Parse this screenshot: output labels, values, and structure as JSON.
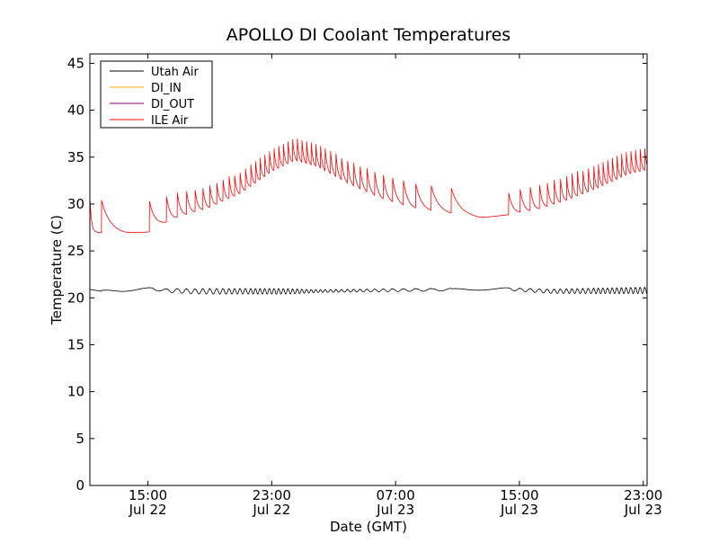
{
  "chart_data": {
    "type": "line",
    "title": "APOLLO DI Coolant Temperatures",
    "xlabel": "Date (GMT)",
    "ylabel": "Temperature (C)",
    "xlim_hours": [
      11.25,
      47.25
    ],
    "ylim": [
      0,
      46
    ],
    "yticks": [
      0,
      5,
      10,
      15,
      20,
      25,
      30,
      35,
      40,
      45
    ],
    "xticks": [
      {
        "hour": 15,
        "time": "15:00",
        "date": "Jul 22"
      },
      {
        "hour": 23,
        "time": "23:00",
        "date": "Jul 22"
      },
      {
        "hour": 31,
        "time": "07:00",
        "date": "Jul 23"
      },
      {
        "hour": 39,
        "time": "15:00",
        "date": "Jul 23"
      },
      {
        "hour": 47,
        "time": "23:00",
        "date": "Jul 23"
      }
    ],
    "grid": false,
    "legend_location": "top-left",
    "series": [
      {
        "name": "Utah Air",
        "color": "#000000",
        "base": [
          [
            11.25,
            20.9
          ],
          [
            12,
            20.7
          ],
          [
            14,
            20.85
          ],
          [
            15.2,
            21.0
          ],
          [
            16,
            20.8
          ],
          [
            18,
            20.7
          ],
          [
            25,
            20.7
          ],
          [
            30,
            20.8
          ],
          [
            38,
            20.95
          ],
          [
            41,
            20.7
          ],
          [
            47.25,
            20.8
          ]
        ],
        "oscillation_amplitude": [
          [
            11.25,
            0.15
          ],
          [
            15,
            0.1
          ],
          [
            17,
            0.25
          ],
          [
            19,
            0.3
          ],
          [
            24,
            0.3
          ],
          [
            26,
            0.15
          ],
          [
            33,
            0.15
          ],
          [
            37,
            0.1
          ],
          [
            40,
            0.2
          ],
          [
            44,
            0.3
          ],
          [
            47.25,
            0.35
          ]
        ],
        "cycle_onsets_hours": [
          12.0,
          15.1,
          16.2,
          16.9,
          17.5,
          18.05,
          18.55,
          19.0,
          19.45,
          19.85,
          20.25,
          20.6,
          20.95,
          21.3,
          21.65,
          21.95,
          22.25,
          22.55,
          22.85,
          23.15,
          23.45,
          23.75,
          24.05,
          24.35,
          24.65,
          24.95,
          25.25,
          25.55,
          25.85,
          26.15,
          26.45,
          26.8,
          27.15,
          27.5,
          27.9,
          28.3,
          28.7,
          29.15,
          29.65,
          30.2,
          30.8,
          31.5,
          32.3,
          33.3,
          34.6,
          38.3,
          39.05,
          39.7,
          40.3,
          40.8,
          41.25,
          41.65,
          42.05,
          42.4,
          42.75,
          43.1,
          43.45,
          43.8,
          44.1,
          44.4,
          44.7,
          45.0,
          45.3,
          45.6,
          45.9,
          46.2,
          46.5,
          46.8,
          47.1
        ]
      },
      {
        "name": "DI_IN",
        "color": "#ffa500",
        "points": []
      },
      {
        "name": "DI_OUT",
        "color": "#800080",
        "points": []
      },
      {
        "name": "ILE Air",
        "color": "#ff0000",
        "base": [
          [
            11.25,
            27.0
          ],
          [
            13.5,
            26.8
          ],
          [
            15.0,
            27.0
          ],
          [
            17,
            28.5
          ],
          [
            19,
            29.5
          ],
          [
            21,
            31.0
          ],
          [
            23,
            33.3
          ],
          [
            24.5,
            34.5
          ],
          [
            26,
            33.8
          ],
          [
            28,
            32.0
          ],
          [
            30,
            30.5
          ],
          [
            32,
            29.5
          ],
          [
            34,
            29.0
          ],
          [
            36.5,
            28.5
          ],
          [
            38,
            28.8
          ],
          [
            40,
            29.2
          ],
          [
            42,
            30.2
          ],
          [
            44,
            31.5
          ],
          [
            46,
            33.0
          ],
          [
            47.25,
            33.5
          ]
        ],
        "peak_height_over_base": [
          [
            11.25,
            3.5
          ],
          [
            14,
            3.5
          ],
          [
            16,
            3.0
          ],
          [
            18,
            2.5
          ],
          [
            21,
            2.5
          ],
          [
            24,
            2.6
          ],
          [
            26,
            2.6
          ],
          [
            28,
            2.6
          ],
          [
            30,
            2.8
          ],
          [
            33,
            2.8
          ],
          [
            35,
            2.8
          ],
          [
            37,
            2.0
          ],
          [
            39,
            2.6
          ],
          [
            42,
            2.8
          ],
          [
            45,
            2.8
          ],
          [
            47.25,
            2.6
          ]
        ],
        "cycle_onsets_hours": [
          12.0,
          15.1,
          16.2,
          16.9,
          17.5,
          18.05,
          18.55,
          19.0,
          19.45,
          19.85,
          20.25,
          20.6,
          20.95,
          21.3,
          21.65,
          21.95,
          22.25,
          22.55,
          22.85,
          23.15,
          23.45,
          23.75,
          24.05,
          24.35,
          24.65,
          24.95,
          25.25,
          25.55,
          25.85,
          26.15,
          26.45,
          26.8,
          27.15,
          27.5,
          27.9,
          28.3,
          28.7,
          29.15,
          29.65,
          30.2,
          30.8,
          31.5,
          32.3,
          33.3,
          34.6,
          38.3,
          39.05,
          39.7,
          40.3,
          40.8,
          41.25,
          41.65,
          42.05,
          42.4,
          42.75,
          43.1,
          43.45,
          43.8,
          44.1,
          44.4,
          44.7,
          45.0,
          45.3,
          45.6,
          45.9,
          46.2,
          46.5,
          46.8,
          47.1
        ]
      }
    ]
  }
}
